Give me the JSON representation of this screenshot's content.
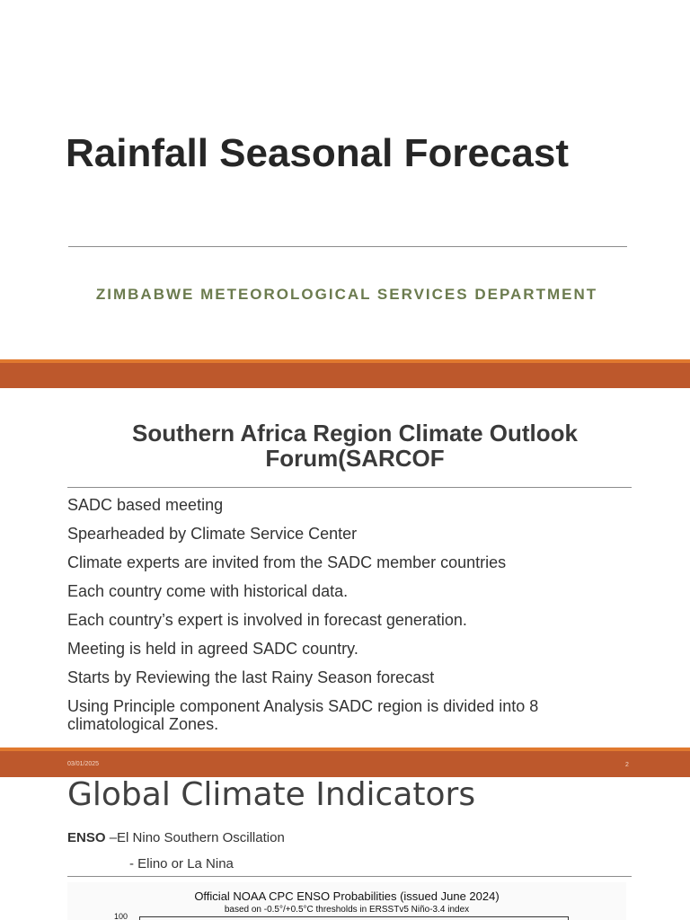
{
  "slides": [
    {
      "title": "Rainfall Seasonal Forecast",
      "subtitle": "ZIMBABWE METEOROLOGICAL SERVICES DEPARTMENT"
    },
    {
      "title": "Southern Africa Region Climate Outlook Forum(SARCOF",
      "bullets": [
        "SADC based meeting",
        "Spearheaded by Climate Service Center",
        "Climate experts are invited from the SADC member countries",
        "Each country come with historical data.",
        "Each country’s expert is involved in forecast generation.",
        "Meeting is held in agreed SADC country.",
        "Starts by Reviewing the last Rainy Season forecast",
        "Using Principle component Analysis SADC region is divided into 8 climatological Zones."
      ],
      "footer": {
        "date": "03/01/2025",
        "page": "2"
      }
    },
    {
      "title": "Global Climate Indicators",
      "enso": {
        "term": "ENSO",
        "definition": "–El Nino Southern Oscillation",
        "sub": "- Elino or La Nina"
      },
      "figure": {
        "title": "Official NOAA CPC ENSO Probabilities (issued June 2024)",
        "subtitle": "based on -0.5°/+0.5°C thresholds in ERSSTv5 Niño-3.4 index",
        "ytick": "100"
      }
    }
  ]
}
